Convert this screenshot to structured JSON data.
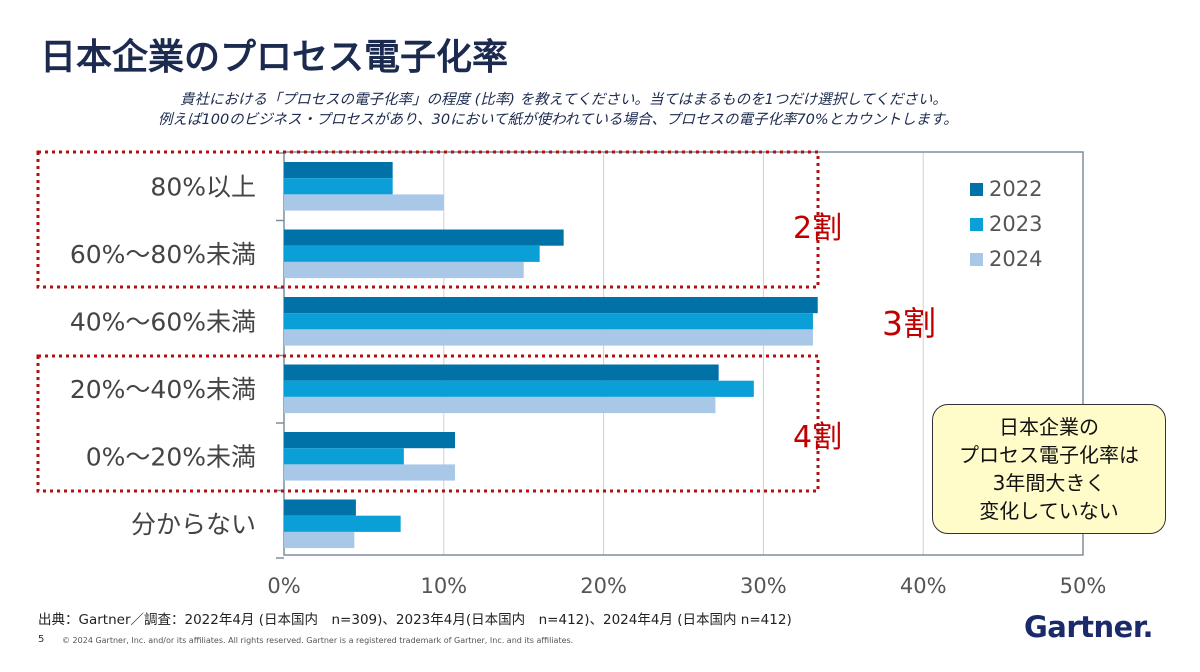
{
  "page": {
    "title": "日本企業のプロセス電子化率",
    "subtitle_line1": "貴社における「プロセスの電子化率」の程度 (比率) を教えてください。当てはまるものを1つだけ選択してください。",
    "subtitle_line2": "例えば100のビジネス・プロセスがあり、30において紙が使われている場合、プロセスの電子化率70%とカウントします。",
    "callout_lines": [
      "日本企業の",
      "プロセス電子化率は",
      "3年間大きく",
      "変化していない"
    ],
    "source": "出典：Gartner／調査：2022年4月 (日本国内　n=309)、2023年4月(日本国内　n=412)、2024年4月 (日本国内 n=412)",
    "page_number": "5",
    "copyright": "© 2024 Gartner, Inc. and/or its affiliates. All rights reserved. Gartner is a registered trademark of Gartner, Inc. and its affiliates.",
    "logo_text": "Gartner",
    "logo_mark": "."
  },
  "chart_data": {
    "type": "bar",
    "orientation": "horizontal",
    "categories": [
      "80%以上",
      "60%～80%未満",
      "40%～60%未満",
      "20%～40%未満",
      "0%～20%未満",
      "分からない"
    ],
    "series": [
      {
        "name": "2022",
        "color": "#0072a8",
        "values": [
          6.8,
          17.5,
          33.4,
          27.2,
          10.7,
          4.5
        ]
      },
      {
        "name": "2023",
        "color": "#0a9fd6",
        "values": [
          6.8,
          16.0,
          33.1,
          29.4,
          7.5,
          7.3
        ]
      },
      {
        "name": "2024",
        "color": "#a9c8e8",
        "values": [
          10.0,
          15.0,
          33.1,
          27.0,
          10.7,
          4.4
        ]
      }
    ],
    "xlim": [
      0,
      50
    ],
    "x_ticks": [
      "0%",
      "10%",
      "20%",
      "30%",
      "40%",
      "50%"
    ],
    "grid": "vertical",
    "legend": "top-right inside plot",
    "annotations": [
      {
        "label": "2割",
        "categories": [
          "80%以上",
          "60%～80%未満"
        ]
      },
      {
        "label": "3割",
        "categories": [
          "40%～60%未満"
        ]
      },
      {
        "label": "4割",
        "categories": [
          "20%～40%未満",
          "0%～20%未満"
        ]
      }
    ]
  }
}
